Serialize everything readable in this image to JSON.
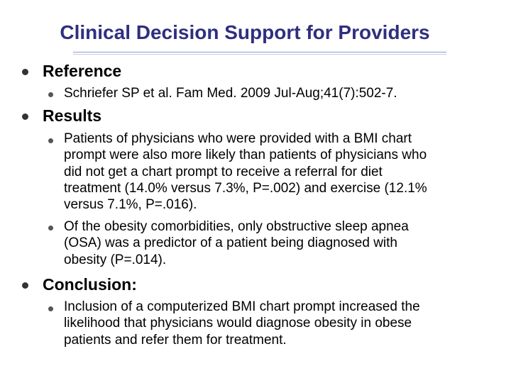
{
  "slide": {
    "title": "Clinical Decision Support for Providers",
    "reference": {
      "heading": "Reference",
      "items": [
        "Schriefer SP et al. Fam Med. 2009 Jul-Aug;41(7):502-7."
      ]
    },
    "results": {
      "heading": "Results",
      "items": [
        {
          "lines": [
            "Patients of physicians who were provided with a BMI chart",
            "prompt were also more likely than patients of physicians who",
            "did not get a chart prompt to receive a referral for diet",
            "treatment (14.0% versus 7.3%, P=.002) and exercise (12.1%",
            "versus 7.1%, P=.016)."
          ]
        },
        {
          "lines": [
            "Of the obesity comorbidities, only obstructive sleep apnea",
            "(OSA) was a predictor of a patient being diagnosed with",
            "obesity (P=.014)."
          ]
        }
      ]
    },
    "conclusion": {
      "heading": "Conclusion:",
      "items": [
        {
          "lines": [
            "Inclusion of a computerized BMI chart prompt increased the",
            "likelihood that physicians would diagnose obesity in obese",
            "patients and refer them for treatment."
          ]
        }
      ]
    }
  },
  "colors": {
    "title": "#2f2f7f",
    "rule": "#8e9bc0",
    "text": "#000000",
    "bullet": "#333333"
  },
  "icons": {
    "level1_bullet": "filled-circle-bullet",
    "level2_bullet": "small-filled-circle-bullet"
  }
}
